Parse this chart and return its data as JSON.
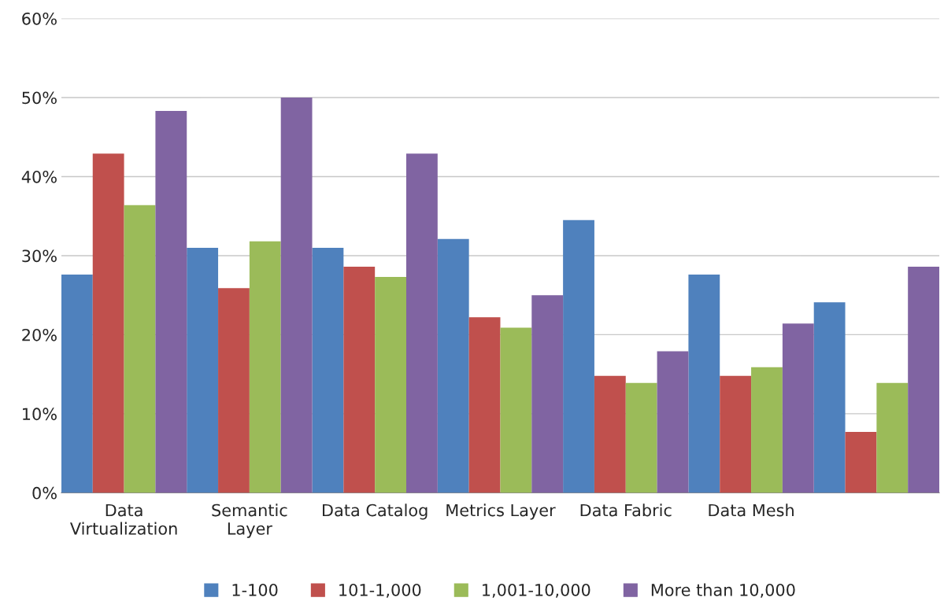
{
  "chart_data": {
    "type": "bar",
    "categories": [
      "Data\nVirtualization",
      "Semantic\nLayer",
      "Data Catalog",
      "Metrics Layer",
      "Data Fabric",
      "Data Mesh",
      null
    ],
    "series": [
      {
        "name": "1-100",
        "color": "#4f81bd",
        "values": [
          27.6,
          31.0,
          31.0,
          32.1,
          34.5,
          27.6,
          24.1
        ]
      },
      {
        "name": "101-1,000",
        "color": "#c0504d",
        "values": [
          42.9,
          25.9,
          28.6,
          22.2,
          14.8,
          14.8,
          7.7
        ]
      },
      {
        "name": "1,001-10,000",
        "color": "#9bbb59",
        "values": [
          36.4,
          31.8,
          27.3,
          20.9,
          13.9,
          15.9,
          13.9
        ]
      },
      {
        "name": "More than 10,000",
        "color": "#8064a2",
        "values": [
          48.3,
          50.0,
          42.9,
          25.0,
          17.9,
          21.4,
          28.6
        ]
      }
    ],
    "ylim": [
      0,
      60
    ],
    "yticks": [
      {
        "value": 0,
        "label": "0%"
      },
      {
        "value": 10,
        "label": "10%"
      },
      {
        "value": 20,
        "label": "20%"
      },
      {
        "value": 30,
        "label": "30%"
      },
      {
        "value": 40,
        "label": "40%"
      },
      {
        "value": 50,
        "label": "50%"
      },
      {
        "value": 60,
        "label": "60%"
      }
    ],
    "grid": "y",
    "legend": "bottom"
  }
}
